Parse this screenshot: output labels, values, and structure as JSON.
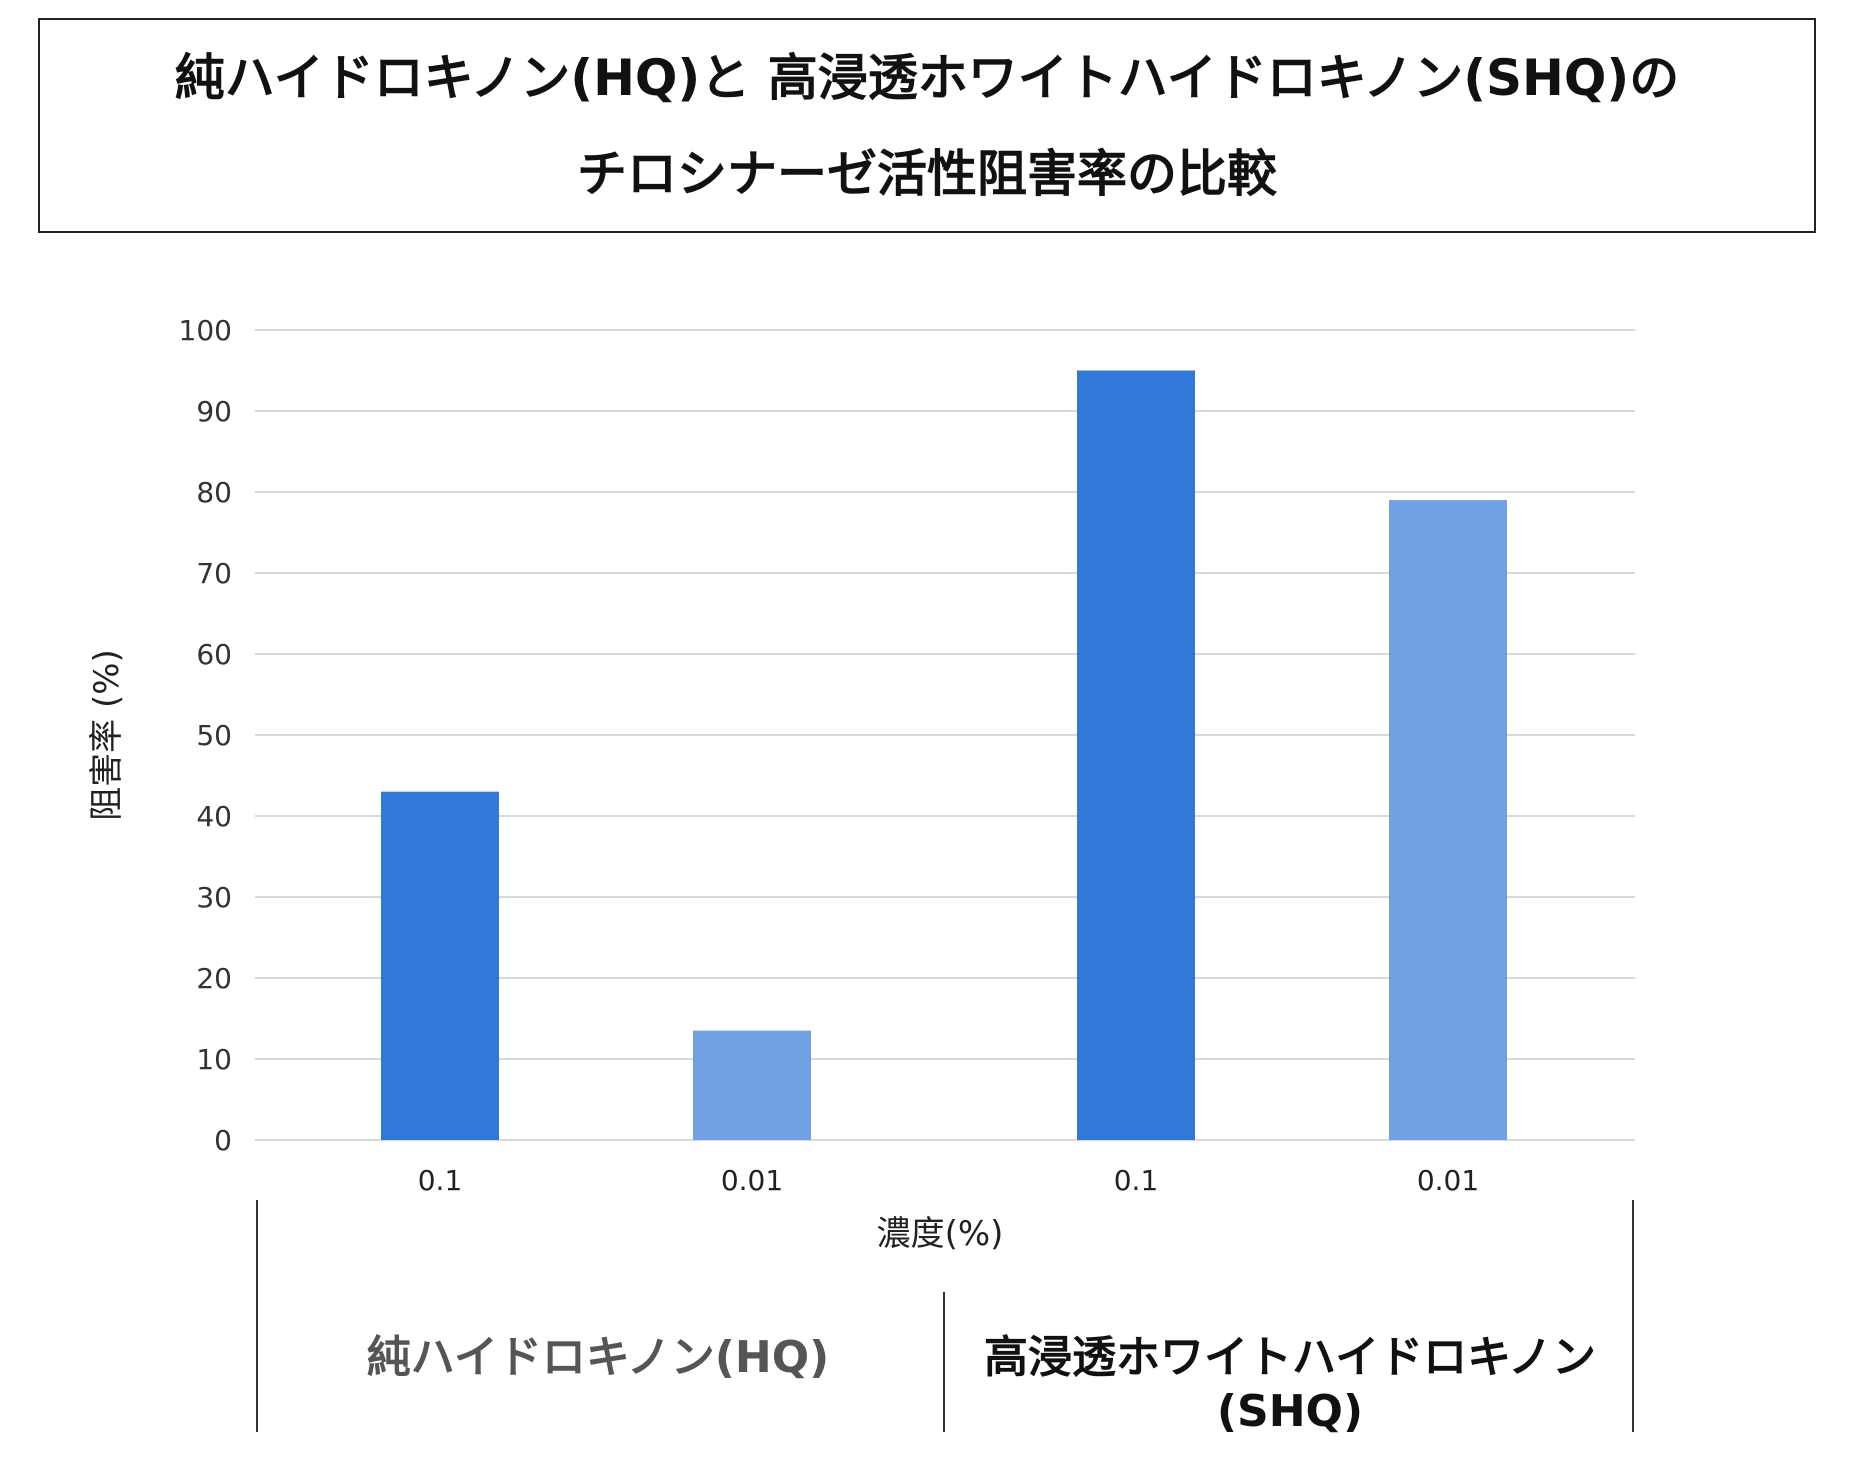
{
  "title": {
    "line1": "純ハイドロキノン(HQ)と 高浸透ホワイトハイドロキノン(SHQ)の",
    "line2": "チロシナーゼ活性阻害率の比較"
  },
  "colors": {
    "dark_bar": "#3278d8",
    "light_bar": "#71a0e3",
    "grid": "#d9d9d9",
    "group1_label": "#555555",
    "group2_label": "#111111"
  },
  "chart_data": {
    "type": "bar",
    "categories": [
      "0.1",
      "0.01",
      "0.1",
      "0.01"
    ],
    "groups": [
      {
        "label": "純ハイドロキノン(HQ)",
        "categories": [
          "0.1",
          "0.01"
        ],
        "values": [
          43,
          13.5
        ]
      },
      {
        "label_lines": [
          "高浸透ホワイトハイドロキノン",
          "(SHQ)"
        ],
        "categories": [
          "0.1",
          "0.01"
        ],
        "values": [
          95,
          79
        ]
      }
    ],
    "values": [
      43,
      13.5,
      95,
      79
    ],
    "bar_shades": [
      "dark",
      "light",
      "dark",
      "light"
    ],
    "xlabel": "濃度(%)",
    "ylabel": "阻害率 (%)",
    "ylim": [
      0,
      100
    ],
    "yticks": [
      0,
      10,
      20,
      30,
      40,
      50,
      60,
      70,
      80,
      90,
      100
    ],
    "grid": true,
    "legend": "none"
  }
}
